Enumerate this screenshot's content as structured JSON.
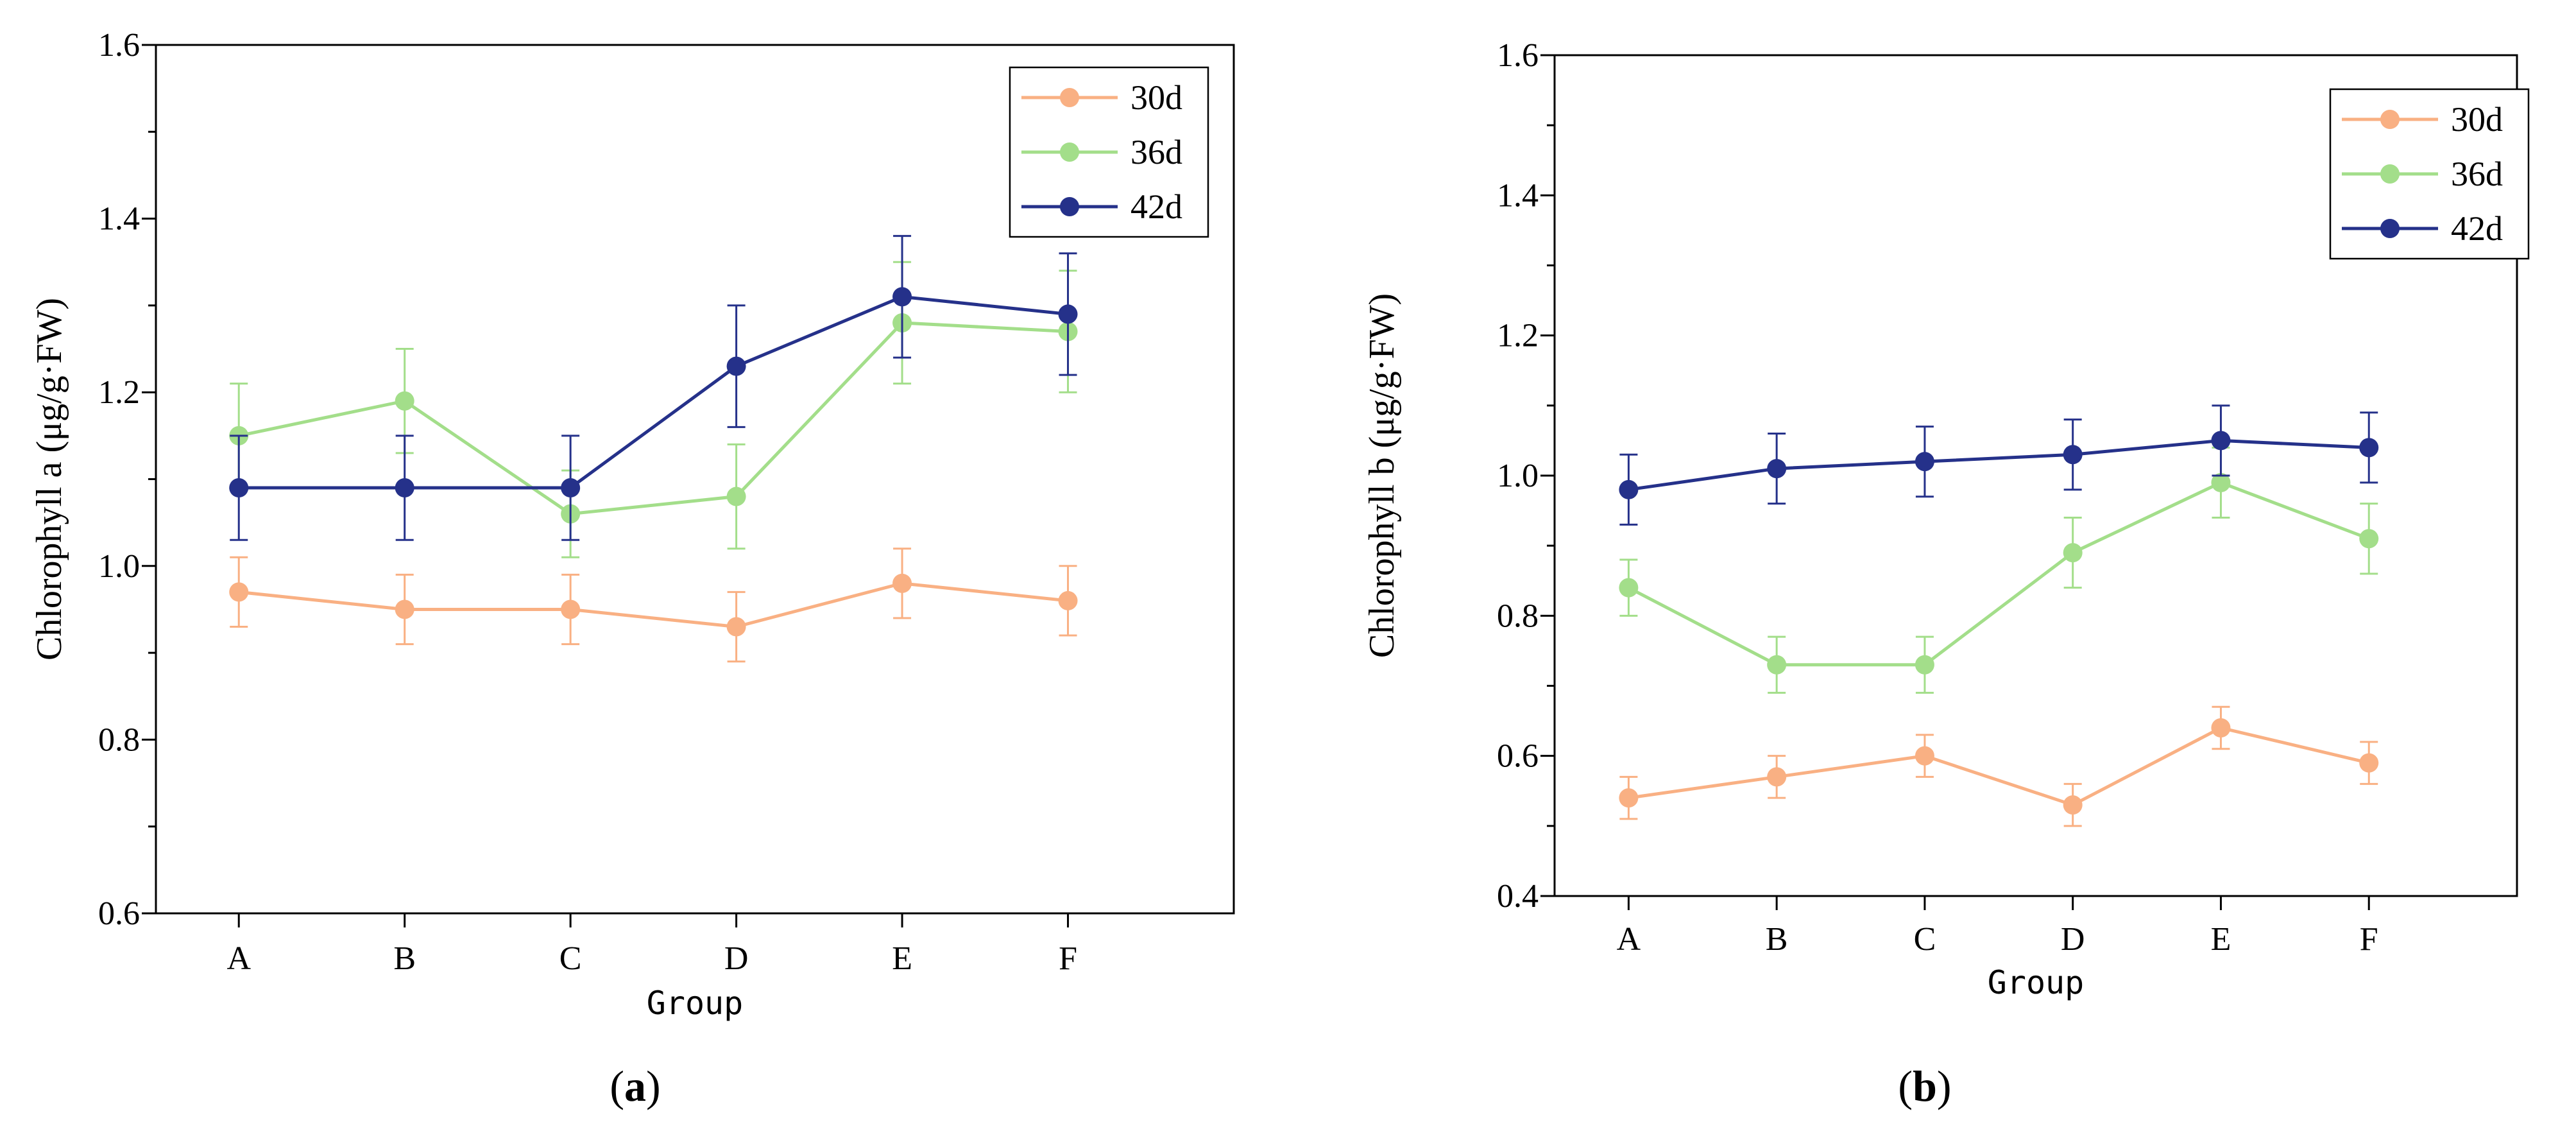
{
  "chart_data": [
    {
      "type": "line",
      "panel_label": {
        "open": "(",
        "letter": "a",
        "close": ")"
      },
      "title": "",
      "xlabel": "Group",
      "ylabel": "Chlorophyll a (μg/g·FW)",
      "categories": [
        "A",
        "B",
        "C",
        "D",
        "E",
        "F"
      ],
      "ylim": [
        0.6,
        1.6
      ],
      "yticks": [
        "0.6",
        "0.8",
        "1.0",
        "1.2",
        "1.4",
        "1.6"
      ],
      "ytick_values": [
        0.6,
        0.8,
        1.0,
        1.2,
        1.4,
        1.6
      ],
      "minor_tick_step": 0.1,
      "legend_position": "top-right",
      "series": [
        {
          "name": "30d",
          "color": "#F9B083",
          "values": [
            0.97,
            0.95,
            0.95,
            0.93,
            0.98,
            0.96
          ],
          "errors": [
            0.04,
            0.04,
            0.04,
            0.04,
            0.04,
            0.04
          ]
        },
        {
          "name": "36d",
          "color": "#A3DE8A",
          "values": [
            1.15,
            1.19,
            1.06,
            1.08,
            1.28,
            1.27
          ],
          "errors": [
            0.06,
            0.06,
            0.05,
            0.06,
            0.07,
            0.07
          ]
        },
        {
          "name": "42d",
          "color": "#25318A",
          "values": [
            1.09,
            1.09,
            1.09,
            1.23,
            1.31,
            1.29
          ],
          "errors": [
            0.06,
            0.06,
            0.06,
            0.07,
            0.07,
            0.07
          ]
        }
      ]
    },
    {
      "type": "line",
      "panel_label": {
        "open": "(",
        "letter": "b",
        "close": ")"
      },
      "title": "",
      "xlabel": "Group",
      "ylabel": "Chlorophyll b (μg/g·FW)",
      "categories": [
        "A",
        "B",
        "C",
        "D",
        "E",
        "F"
      ],
      "ylim": [
        0.4,
        1.6
      ],
      "yticks": [
        "0.4",
        "0.6",
        "0.8",
        "1.0",
        "1.2",
        "1.4",
        "1.6"
      ],
      "ytick_values": [
        0.4,
        0.6,
        0.8,
        1.0,
        1.2,
        1.4,
        1.6
      ],
      "minor_tick_step": 0.1,
      "legend_position": "top-right",
      "series": [
        {
          "name": "30d",
          "color": "#F9B083",
          "values": [
            0.54,
            0.57,
            0.6,
            0.53,
            0.64,
            0.59
          ],
          "errors": [
            0.03,
            0.03,
            0.03,
            0.03,
            0.03,
            0.03
          ]
        },
        {
          "name": "36d",
          "color": "#A3DE8A",
          "values": [
            0.84,
            0.73,
            0.73,
            0.89,
            0.99,
            0.91
          ],
          "errors": [
            0.04,
            0.04,
            0.04,
            0.05,
            0.05,
            0.05
          ]
        },
        {
          "name": "42d",
          "color": "#25318A",
          "values": [
            0.98,
            1.01,
            1.02,
            1.03,
            1.05,
            1.04
          ],
          "errors": [
            0.05,
            0.05,
            0.05,
            0.05,
            0.05,
            0.05
          ]
        }
      ]
    }
  ]
}
